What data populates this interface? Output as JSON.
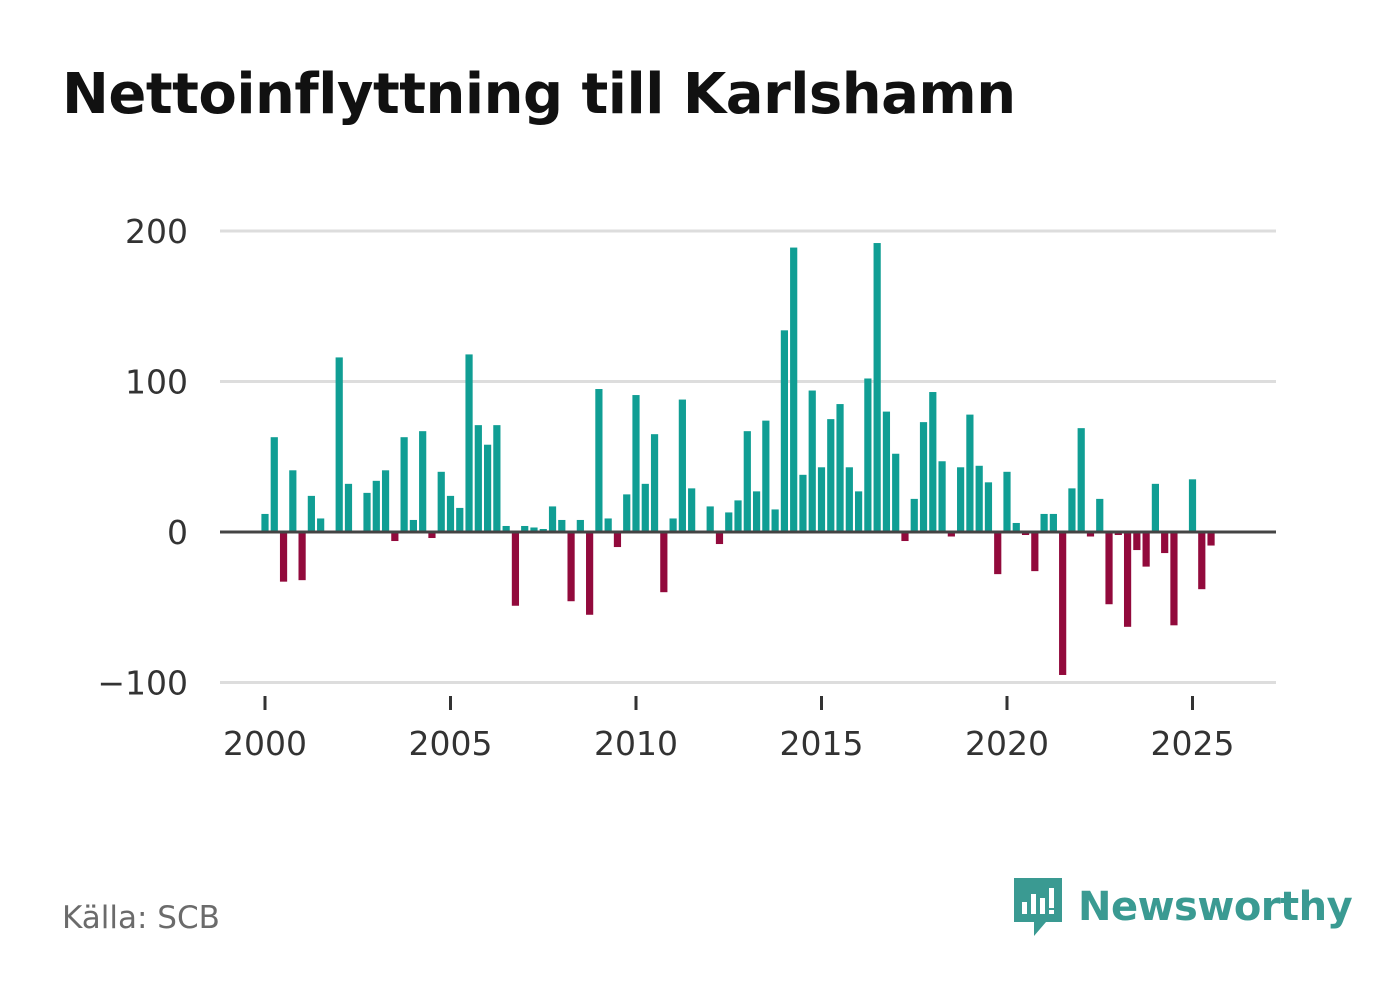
{
  "header": {
    "title": "Nettoinflyttning till Karlshamn"
  },
  "footer": {
    "source": "Källa: SCB",
    "brand": "Newsworthy"
  },
  "colors": {
    "positive": "#109e94",
    "negative": "#920a3c",
    "grid": "#dddddd",
    "zero_line": "#444444"
  },
  "chart_data": {
    "type": "bar",
    "title": "Nettoinflyttning till Karlshamn",
    "xlabel": "",
    "ylabel": "",
    "ylim": [
      -100,
      200
    ],
    "yticks": [
      -100,
      0,
      100,
      200
    ],
    "ytick_labels": [
      "−100",
      "0",
      "100",
      "200"
    ],
    "xticks": [
      2000,
      2005,
      2010,
      2015,
      2020,
      2025
    ],
    "xtick_labels": [
      "2000",
      "2005",
      "2010",
      "2015",
      "2020",
      "2025"
    ],
    "x_start": 2000,
    "periods_per_year": 4,
    "values": [
      12,
      63,
      -33,
      41,
      -32,
      24,
      9,
      0,
      116,
      32,
      0,
      26,
      34,
      41,
      -6,
      63,
      8,
      67,
      -4,
      40,
      24,
      16,
      118,
      71,
      58,
      71,
      4,
      -49,
      4,
      3,
      2,
      17,
      8,
      -46,
      8,
      -55,
      95,
      9,
      -10,
      25,
      91,
      32,
      65,
      -40,
      9,
      88,
      29,
      0,
      17,
      -8,
      13,
      21,
      67,
      27,
      74,
      15,
      134,
      189,
      38,
      94,
      43,
      75,
      85,
      43,
      27,
      102,
      192,
      80,
      52,
      -6,
      22,
      73,
      93,
      47,
      -3,
      43,
      78,
      44,
      33,
      -28,
      40,
      6,
      -2,
      -26,
      12,
      12,
      -95,
      29,
      69,
      -3,
      22,
      -48,
      -2,
      -63,
      -12,
      -23,
      32,
      -14,
      -62,
      0,
      35,
      -38,
      -9
    ]
  }
}
